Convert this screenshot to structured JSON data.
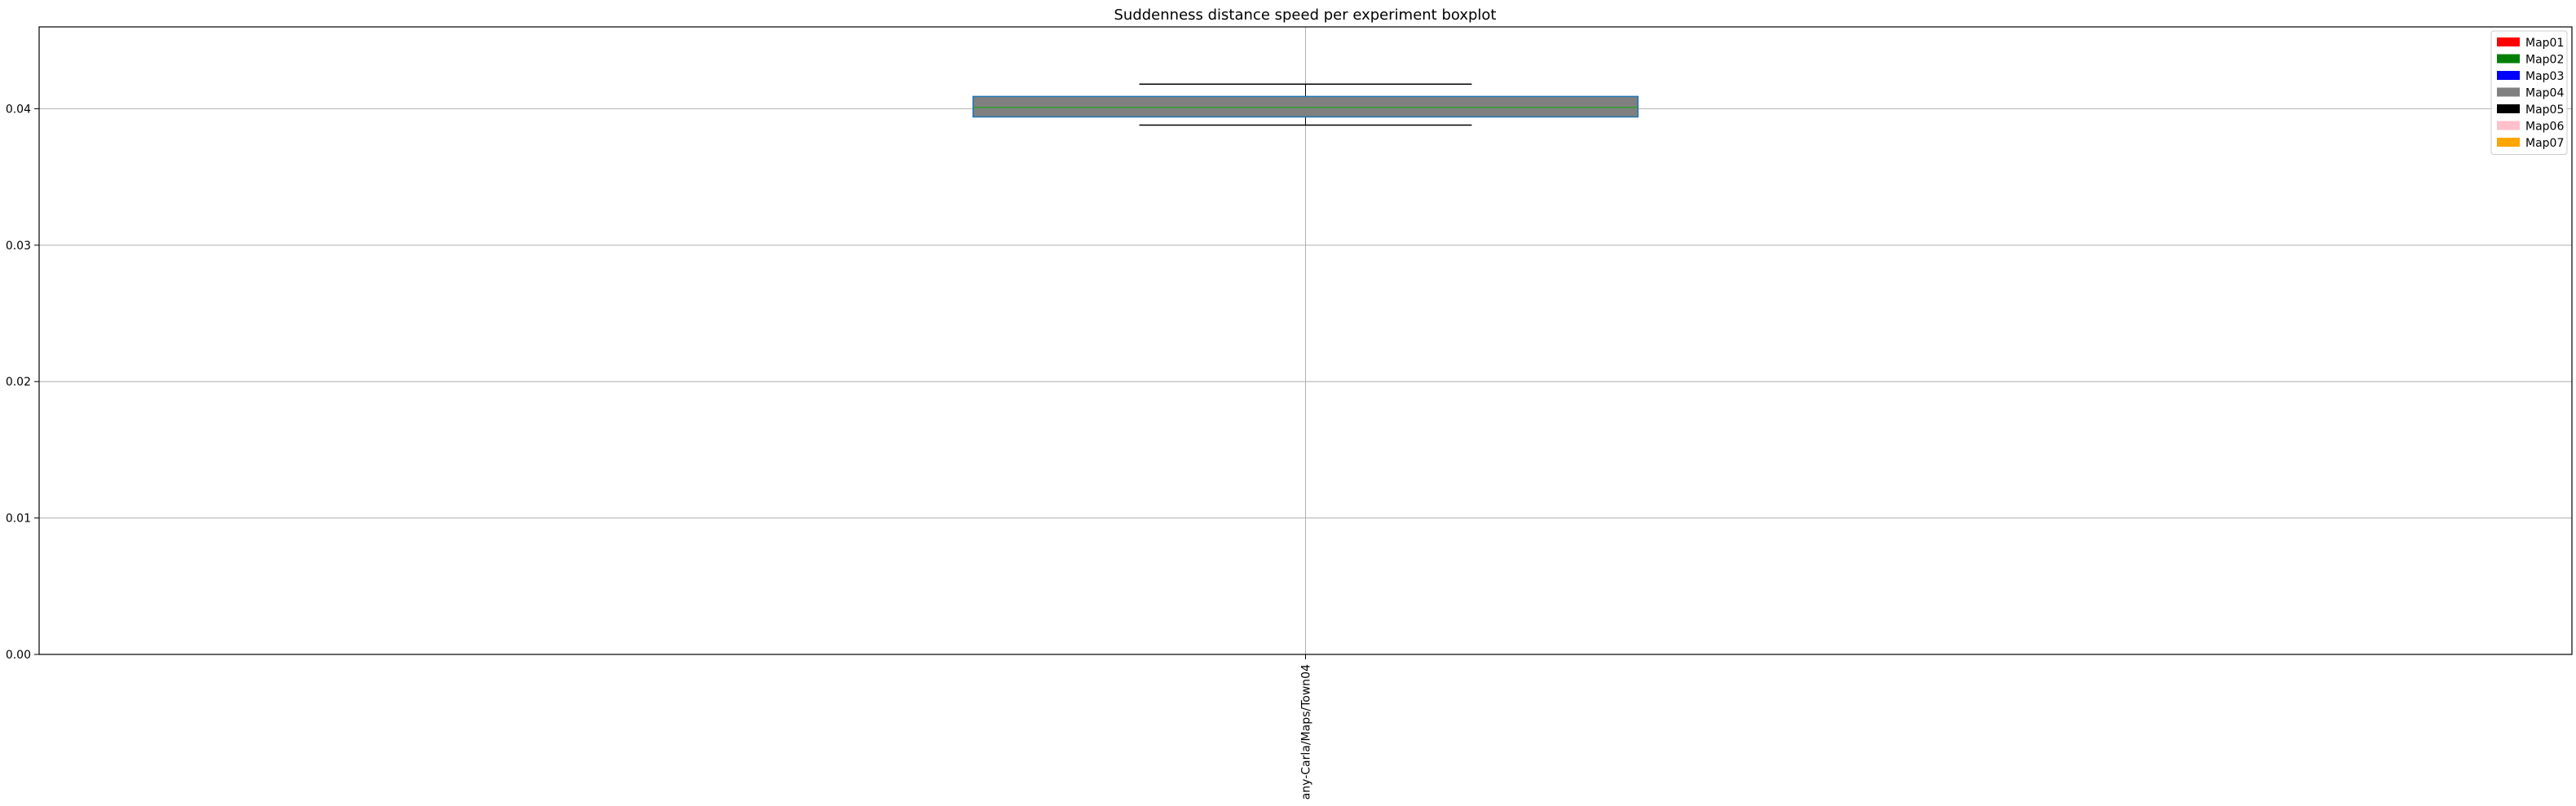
{
  "chart_data": {
    "type": "boxplot",
    "title": "Suddenness distance speed per experiment boxplot",
    "xlabel": "",
    "ylabel": "",
    "ylim": [
      0.0,
      0.046
    ],
    "yticks": [
      "0.00",
      "0.01",
      "0.02",
      "0.03",
      "0.04"
    ],
    "ytick_values": [
      0.0,
      0.01,
      0.02,
      0.03,
      0.04
    ],
    "grid": true,
    "categories": [
      "any-Carla/Maps/Town04"
    ],
    "boxes": [
      {
        "category": "any-Carla/Maps/Town04",
        "whisker_low": 0.0388,
        "q1": 0.0394,
        "median": 0.0401,
        "q3": 0.0409,
        "whisker_high": 0.0418,
        "fill_color": "#808080",
        "edge_color": "#1f77b4",
        "median_color": "#2ca02c"
      }
    ],
    "legend_position": "top-right",
    "legend": [
      {
        "label": "Map01",
        "color": "#ff0000"
      },
      {
        "label": "Map02",
        "color": "#008000"
      },
      {
        "label": "Map03",
        "color": "#0000ff"
      },
      {
        "label": "Map04",
        "color": "#808080"
      },
      {
        "label": "Map05",
        "color": "#000000"
      },
      {
        "label": "Map06",
        "color": "#ffc0cb"
      },
      {
        "label": "Map07",
        "color": "#ffa500"
      }
    ]
  }
}
